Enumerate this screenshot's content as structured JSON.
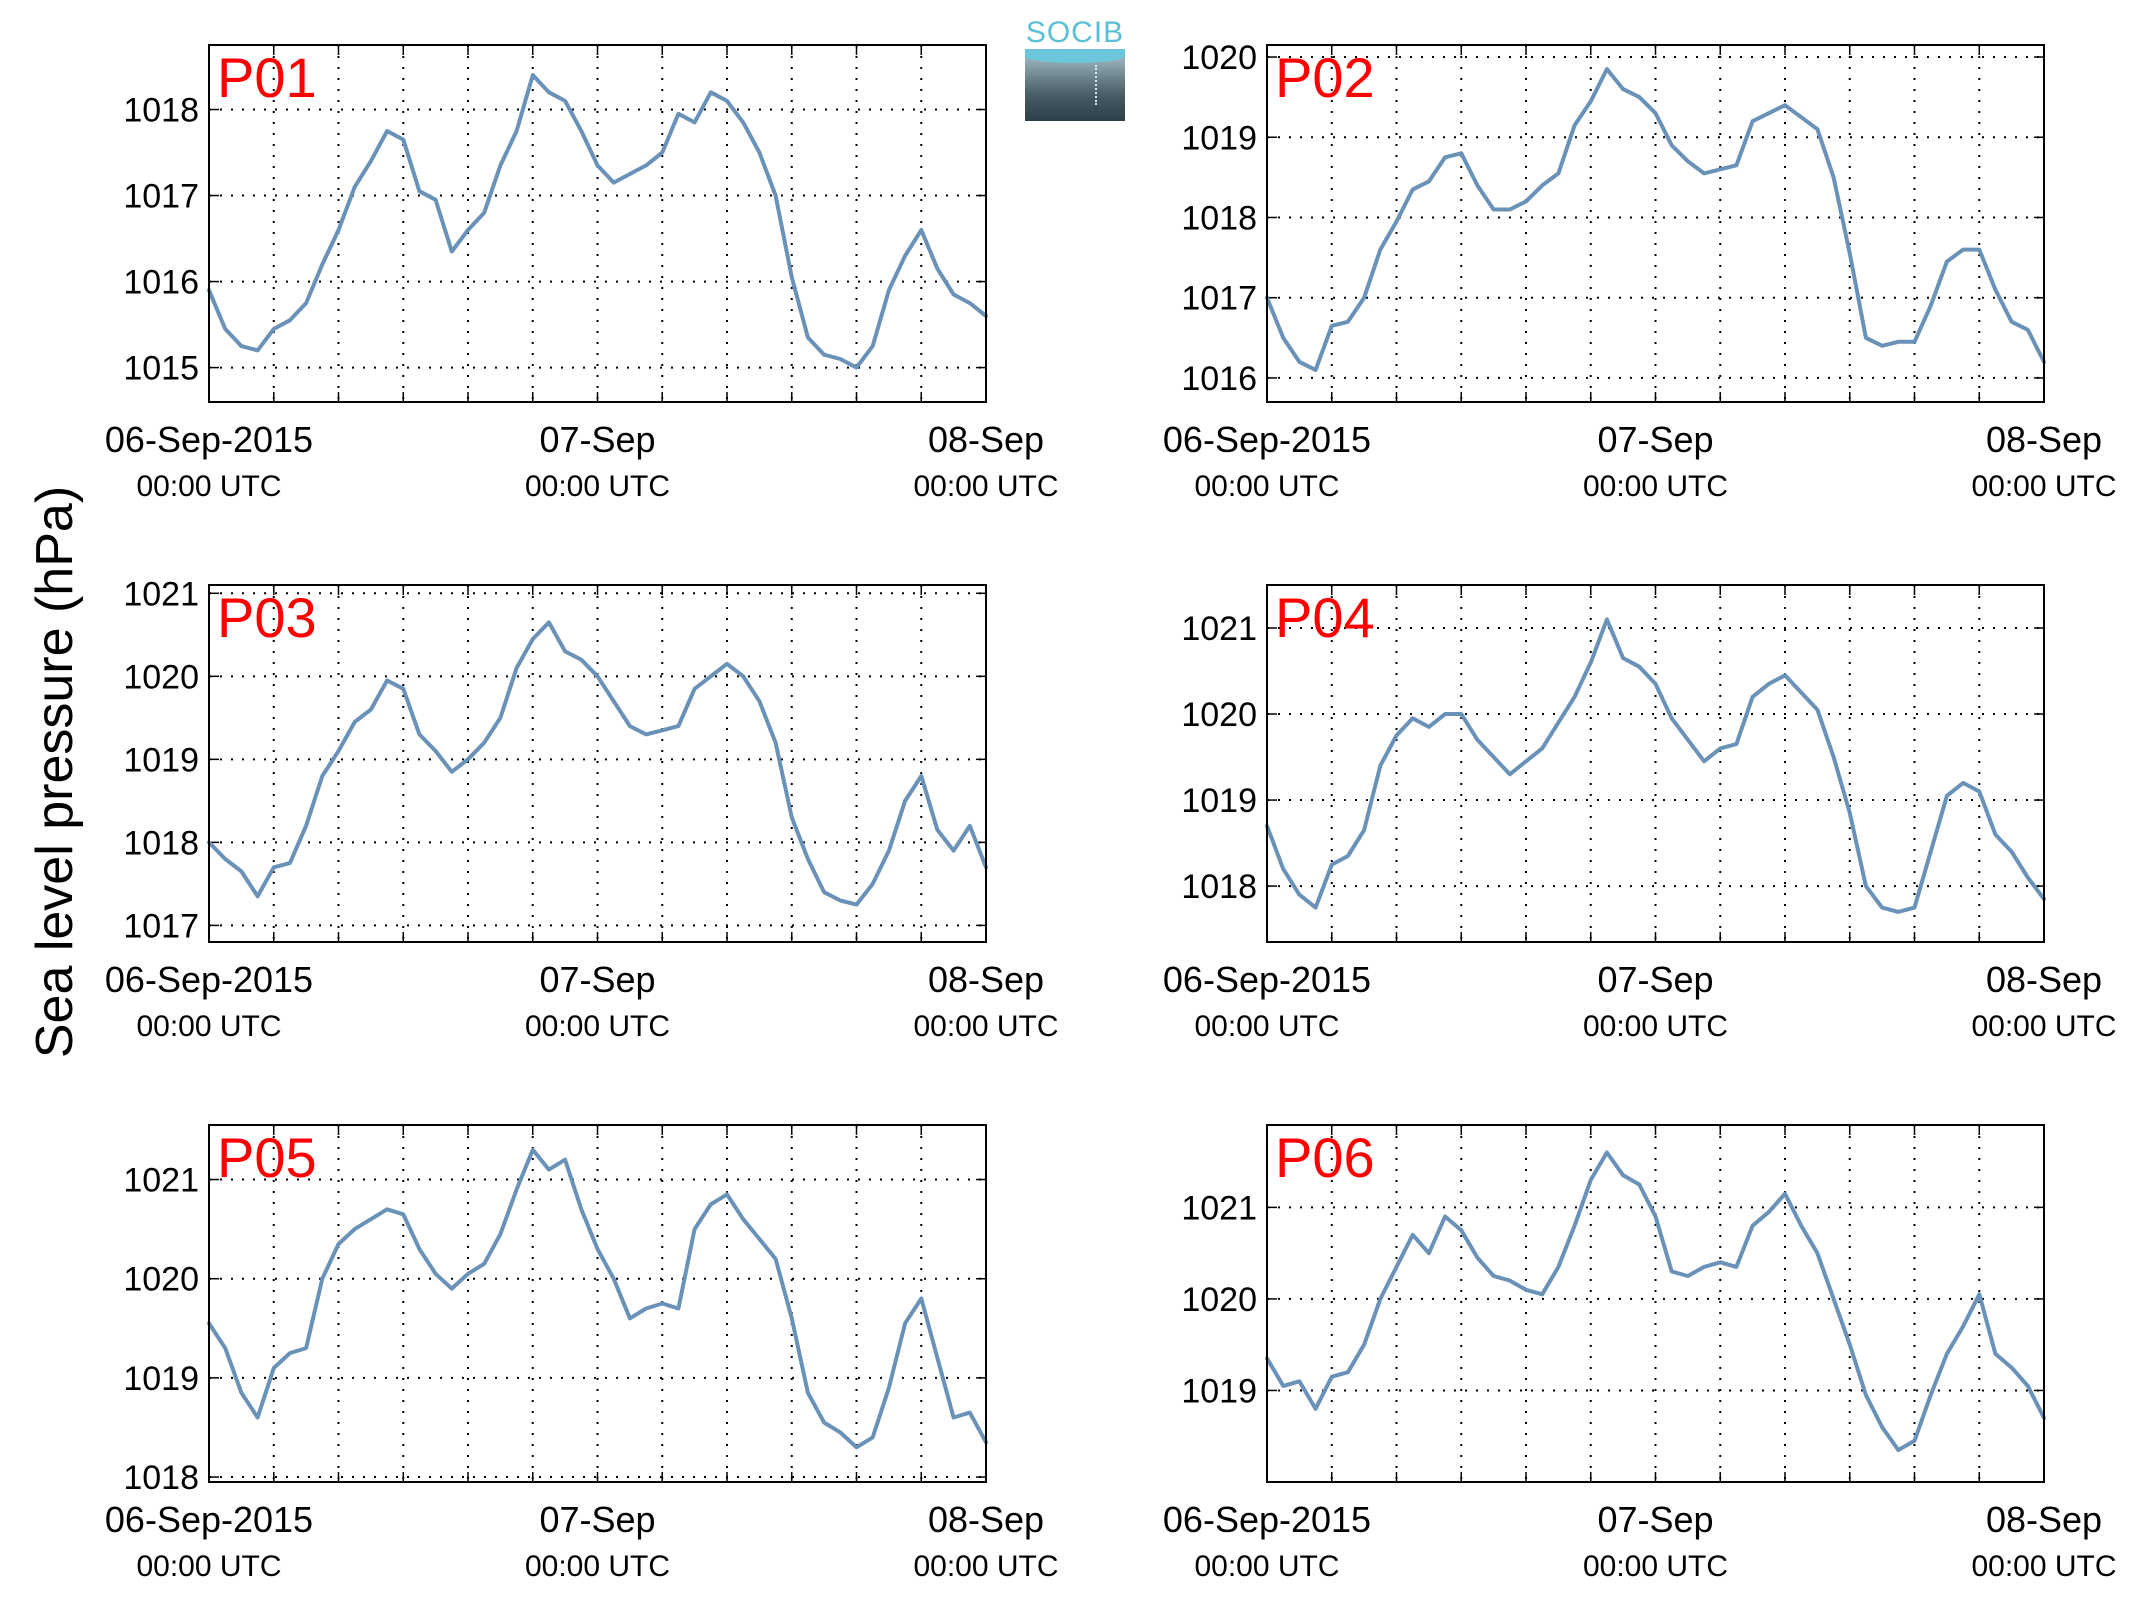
{
  "figure": {
    "ylabel": "Sea level pressure (hPa)",
    "logo_text": "SOCIB",
    "line_color": "#6a92b8",
    "panel_label_color": "#ff0000"
  },
  "chart_data": [
    {
      "type": "line",
      "panel_label": "P01",
      "x_unit": "hours since 06-Sep-2015 00:00 UTC",
      "xlim": [
        0,
        48
      ],
      "xticks": [
        {
          "value": 0,
          "label": "06-Sep-2015",
          "sublabel": "00:00 UTC"
        },
        {
          "value": 24,
          "label": "07-Sep",
          "sublabel": "00:00 UTC"
        },
        {
          "value": 48,
          "label": "08-Sep",
          "sublabel": "00:00 UTC"
        }
      ],
      "ylim": [
        1014.6,
        1018.75
      ],
      "yticks": [
        1015,
        1016,
        1017,
        1018
      ],
      "grid": true,
      "series": [
        {
          "x": [
            0,
            1,
            2,
            3,
            4,
            5,
            6,
            7,
            8,
            9,
            10,
            11,
            12,
            13,
            14,
            15,
            16,
            17,
            18,
            19,
            20,
            21,
            22,
            23,
            24,
            25,
            26,
            27,
            28,
            29,
            30,
            31,
            32,
            33,
            34,
            35,
            36,
            37,
            38,
            39,
            40,
            41,
            42,
            43,
            44,
            45,
            46,
            47,
            48
          ],
          "y": [
            1015.9,
            1015.45,
            1015.25,
            1015.2,
            1015.45,
            1015.55,
            1015.75,
            1016.2,
            1016.6,
            1017.1,
            1017.4,
            1017.75,
            1017.65,
            1017.05,
            1016.95,
            1016.35,
            1016.6,
            1016.8,
            1017.35,
            1017.75,
            1018.4,
            1018.2,
            1018.1,
            1017.75,
            1017.35,
            1017.15,
            1017.25,
            1017.35,
            1017.5,
            1017.95,
            1017.85,
            1018.2,
            1018.1,
            1017.85,
            1017.5,
            1017.0,
            1016.05,
            1015.35,
            1015.15,
            1015.1,
            1015.0,
            1015.25,
            1015.9,
            1016.3,
            1016.6,
            1016.15,
            1015.85,
            1015.75,
            1015.6
          ]
        }
      ]
    },
    {
      "type": "line",
      "panel_label": "P02",
      "x_unit": "hours since 06-Sep-2015 00:00 UTC",
      "xlim": [
        0,
        48
      ],
      "xticks": [
        {
          "value": 0,
          "label": "06-Sep-2015",
          "sublabel": "00:00 UTC"
        },
        {
          "value": 24,
          "label": "07-Sep",
          "sublabel": "00:00 UTC"
        },
        {
          "value": 48,
          "label": "08-Sep",
          "sublabel": "00:00 UTC"
        }
      ],
      "ylim": [
        1015.7,
        1020.15
      ],
      "yticks": [
        1016,
        1017,
        1018,
        1019,
        1020
      ],
      "grid": true,
      "series": [
        {
          "x": [
            0,
            1,
            2,
            3,
            4,
            5,
            6,
            7,
            8,
            9,
            10,
            11,
            12,
            13,
            14,
            15,
            16,
            17,
            18,
            19,
            20,
            21,
            22,
            23,
            24,
            25,
            26,
            27,
            28,
            29,
            30,
            31,
            32,
            33,
            34,
            35,
            36,
            37,
            38,
            39,
            40,
            41,
            42,
            43,
            44,
            45,
            46,
            47,
            48
          ],
          "y": [
            1017.0,
            1016.5,
            1016.2,
            1016.1,
            1016.65,
            1016.7,
            1017.0,
            1017.6,
            1017.95,
            1018.35,
            1018.45,
            1018.75,
            1018.8,
            1018.4,
            1018.1,
            1018.1,
            1018.2,
            1018.4,
            1018.55,
            1019.15,
            1019.45,
            1019.85,
            1019.6,
            1019.5,
            1019.3,
            1018.9,
            1018.7,
            1018.55,
            1018.6,
            1018.65,
            1019.2,
            1019.3,
            1019.4,
            1019.25,
            1019.1,
            1018.5,
            1017.55,
            1016.5,
            1016.4,
            1016.45,
            1016.45,
            1016.9,
            1017.45,
            1017.6,
            1017.6,
            1017.1,
            1016.7,
            1016.6,
            1016.2
          ]
        }
      ]
    },
    {
      "type": "line",
      "panel_label": "P03",
      "x_unit": "hours since 06-Sep-2015 00:00 UTC",
      "xlim": [
        0,
        48
      ],
      "xticks": [
        {
          "value": 0,
          "label": "06-Sep-2015",
          "sublabel": "00:00 UTC"
        },
        {
          "value": 24,
          "label": "07-Sep",
          "sublabel": "00:00 UTC"
        },
        {
          "value": 48,
          "label": "08-Sep",
          "sublabel": "00:00 UTC"
        }
      ],
      "ylim": [
        1016.8,
        1021.1
      ],
      "yticks": [
        1017,
        1018,
        1019,
        1020,
        1021
      ],
      "grid": true,
      "series": [
        {
          "x": [
            0,
            1,
            2,
            3,
            4,
            5,
            6,
            7,
            8,
            9,
            10,
            11,
            12,
            13,
            14,
            15,
            16,
            17,
            18,
            19,
            20,
            21,
            22,
            23,
            24,
            25,
            26,
            27,
            28,
            29,
            30,
            31,
            32,
            33,
            34,
            35,
            36,
            37,
            38,
            39,
            40,
            41,
            42,
            43,
            44,
            45,
            46,
            47,
            48
          ],
          "y": [
            1018.0,
            1017.8,
            1017.65,
            1017.35,
            1017.7,
            1017.75,
            1018.2,
            1018.8,
            1019.1,
            1019.45,
            1019.6,
            1019.95,
            1019.85,
            1019.3,
            1019.1,
            1018.85,
            1019.0,
            1019.2,
            1019.5,
            1020.1,
            1020.45,
            1020.65,
            1020.3,
            1020.2,
            1020.0,
            1019.7,
            1019.4,
            1019.3,
            1019.35,
            1019.4,
            1019.85,
            1020.0,
            1020.15,
            1020.0,
            1019.7,
            1019.2,
            1018.3,
            1017.8,
            1017.4,
            1017.3,
            1017.25,
            1017.5,
            1017.9,
            1018.5,
            1018.8,
            1018.15,
            1017.9,
            1018.2,
            1017.7
          ]
        }
      ]
    },
    {
      "type": "line",
      "panel_label": "P04",
      "x_unit": "hours since 06-Sep-2015 00:00 UTC",
      "xlim": [
        0,
        48
      ],
      "xticks": [
        {
          "value": 0,
          "label": "06-Sep-2015",
          "sublabel": "00:00 UTC"
        },
        {
          "value": 24,
          "label": "07-Sep",
          "sublabel": "00:00 UTC"
        },
        {
          "value": 48,
          "label": "08-Sep",
          "sublabel": "00:00 UTC"
        }
      ],
      "ylim": [
        1017.35,
        1021.5
      ],
      "yticks": [
        1018,
        1019,
        1020,
        1021
      ],
      "grid": true,
      "series": [
        {
          "x": [
            0,
            1,
            2,
            3,
            4,
            5,
            6,
            7,
            8,
            9,
            10,
            11,
            12,
            13,
            14,
            15,
            16,
            17,
            18,
            19,
            20,
            21,
            22,
            23,
            24,
            25,
            26,
            27,
            28,
            29,
            30,
            31,
            32,
            33,
            34,
            35,
            36,
            37,
            38,
            39,
            40,
            41,
            42,
            43,
            44,
            45,
            46,
            47,
            48
          ],
          "y": [
            1018.7,
            1018.2,
            1017.9,
            1017.75,
            1018.25,
            1018.35,
            1018.65,
            1019.4,
            1019.75,
            1019.95,
            1019.85,
            1020.0,
            1020.0,
            1019.7,
            1019.5,
            1019.3,
            1019.45,
            1019.6,
            1019.9,
            1020.2,
            1020.6,
            1021.1,
            1020.65,
            1020.55,
            1020.35,
            1019.95,
            1019.7,
            1019.45,
            1019.6,
            1019.65,
            1020.2,
            1020.35,
            1020.45,
            1020.25,
            1020.05,
            1019.5,
            1018.85,
            1018.0,
            1017.75,
            1017.7,
            1017.75,
            1018.4,
            1019.05,
            1019.2,
            1019.1,
            1018.6,
            1018.4,
            1018.1,
            1017.85
          ]
        }
      ]
    },
    {
      "type": "line",
      "panel_label": "P05",
      "x_unit": "hours since 06-Sep-2015 00:00 UTC",
      "xlim": [
        0,
        48
      ],
      "xticks": [
        {
          "value": 0,
          "label": "06-Sep-2015",
          "sublabel": "00:00 UTC"
        },
        {
          "value": 24,
          "label": "07-Sep",
          "sublabel": "00:00 UTC"
        },
        {
          "value": 48,
          "label": "08-Sep",
          "sublabel": "00:00 UTC"
        }
      ],
      "ylim": [
        1017.95,
        1021.55
      ],
      "yticks": [
        1018,
        1019,
        1020,
        1021
      ],
      "grid": true,
      "series": [
        {
          "x": [
            0,
            1,
            2,
            3,
            4,
            5,
            6,
            7,
            8,
            9,
            10,
            11,
            12,
            13,
            14,
            15,
            16,
            17,
            18,
            19,
            20,
            21,
            22,
            23,
            24,
            25,
            26,
            27,
            28,
            29,
            30,
            31,
            32,
            33,
            34,
            35,
            36,
            37,
            38,
            39,
            40,
            41,
            42,
            43,
            44,
            45,
            46,
            47,
            48
          ],
          "y": [
            1019.55,
            1019.3,
            1018.85,
            1018.6,
            1019.1,
            1019.25,
            1019.3,
            1020.0,
            1020.35,
            1020.5,
            1020.6,
            1020.7,
            1020.65,
            1020.3,
            1020.05,
            1019.9,
            1020.05,
            1020.15,
            1020.45,
            1020.9,
            1021.3,
            1021.1,
            1021.2,
            1020.7,
            1020.3,
            1020.0,
            1019.6,
            1019.7,
            1019.75,
            1019.7,
            1020.5,
            1020.75,
            1020.85,
            1020.6,
            1020.4,
            1020.2,
            1019.6,
            1018.85,
            1018.55,
            1018.45,
            1018.3,
            1018.4,
            1018.9,
            1019.55,
            1019.8,
            1019.2,
            1018.6,
            1018.65,
            1018.35
          ]
        }
      ]
    },
    {
      "type": "line",
      "panel_label": "P06",
      "x_unit": "hours since 06-Sep-2015 00:00 UTC",
      "xlim": [
        0,
        48
      ],
      "xticks": [
        {
          "value": 0,
          "label": "06-Sep-2015",
          "sublabel": "00:00 UTC"
        },
        {
          "value": 24,
          "label": "07-Sep",
          "sublabel": "00:00 UTC"
        },
        {
          "value": 48,
          "label": "08-Sep",
          "sublabel": "00:00 UTC"
        }
      ],
      "ylim": [
        1018.0,
        1021.9
      ],
      "yticks": [
        1019,
        1020,
        1021
      ],
      "grid": true,
      "series": [
        {
          "x": [
            0,
            1,
            2,
            3,
            4,
            5,
            6,
            7,
            8,
            9,
            10,
            11,
            12,
            13,
            14,
            15,
            16,
            17,
            18,
            19,
            20,
            21,
            22,
            23,
            24,
            25,
            26,
            27,
            28,
            29,
            30,
            31,
            32,
            33,
            34,
            35,
            36,
            37,
            38,
            39,
            40,
            41,
            42,
            43,
            44,
            45,
            46,
            47,
            48
          ],
          "y": [
            1019.35,
            1019.05,
            1019.1,
            1018.8,
            1019.15,
            1019.2,
            1019.5,
            1020.0,
            1020.35,
            1020.7,
            1020.5,
            1020.9,
            1020.75,
            1020.45,
            1020.25,
            1020.2,
            1020.1,
            1020.05,
            1020.35,
            1020.8,
            1021.3,
            1021.6,
            1021.35,
            1021.25,
            1020.9,
            1020.3,
            1020.25,
            1020.35,
            1020.4,
            1020.35,
            1020.8,
            1020.95,
            1021.15,
            1020.8,
            1020.5,
            1020.0,
            1019.5,
            1018.95,
            1018.6,
            1018.35,
            1018.45,
            1018.95,
            1019.4,
            1019.7,
            1020.05,
            1019.4,
            1019.25,
            1019.05,
            1018.7
          ]
        }
      ]
    }
  ]
}
